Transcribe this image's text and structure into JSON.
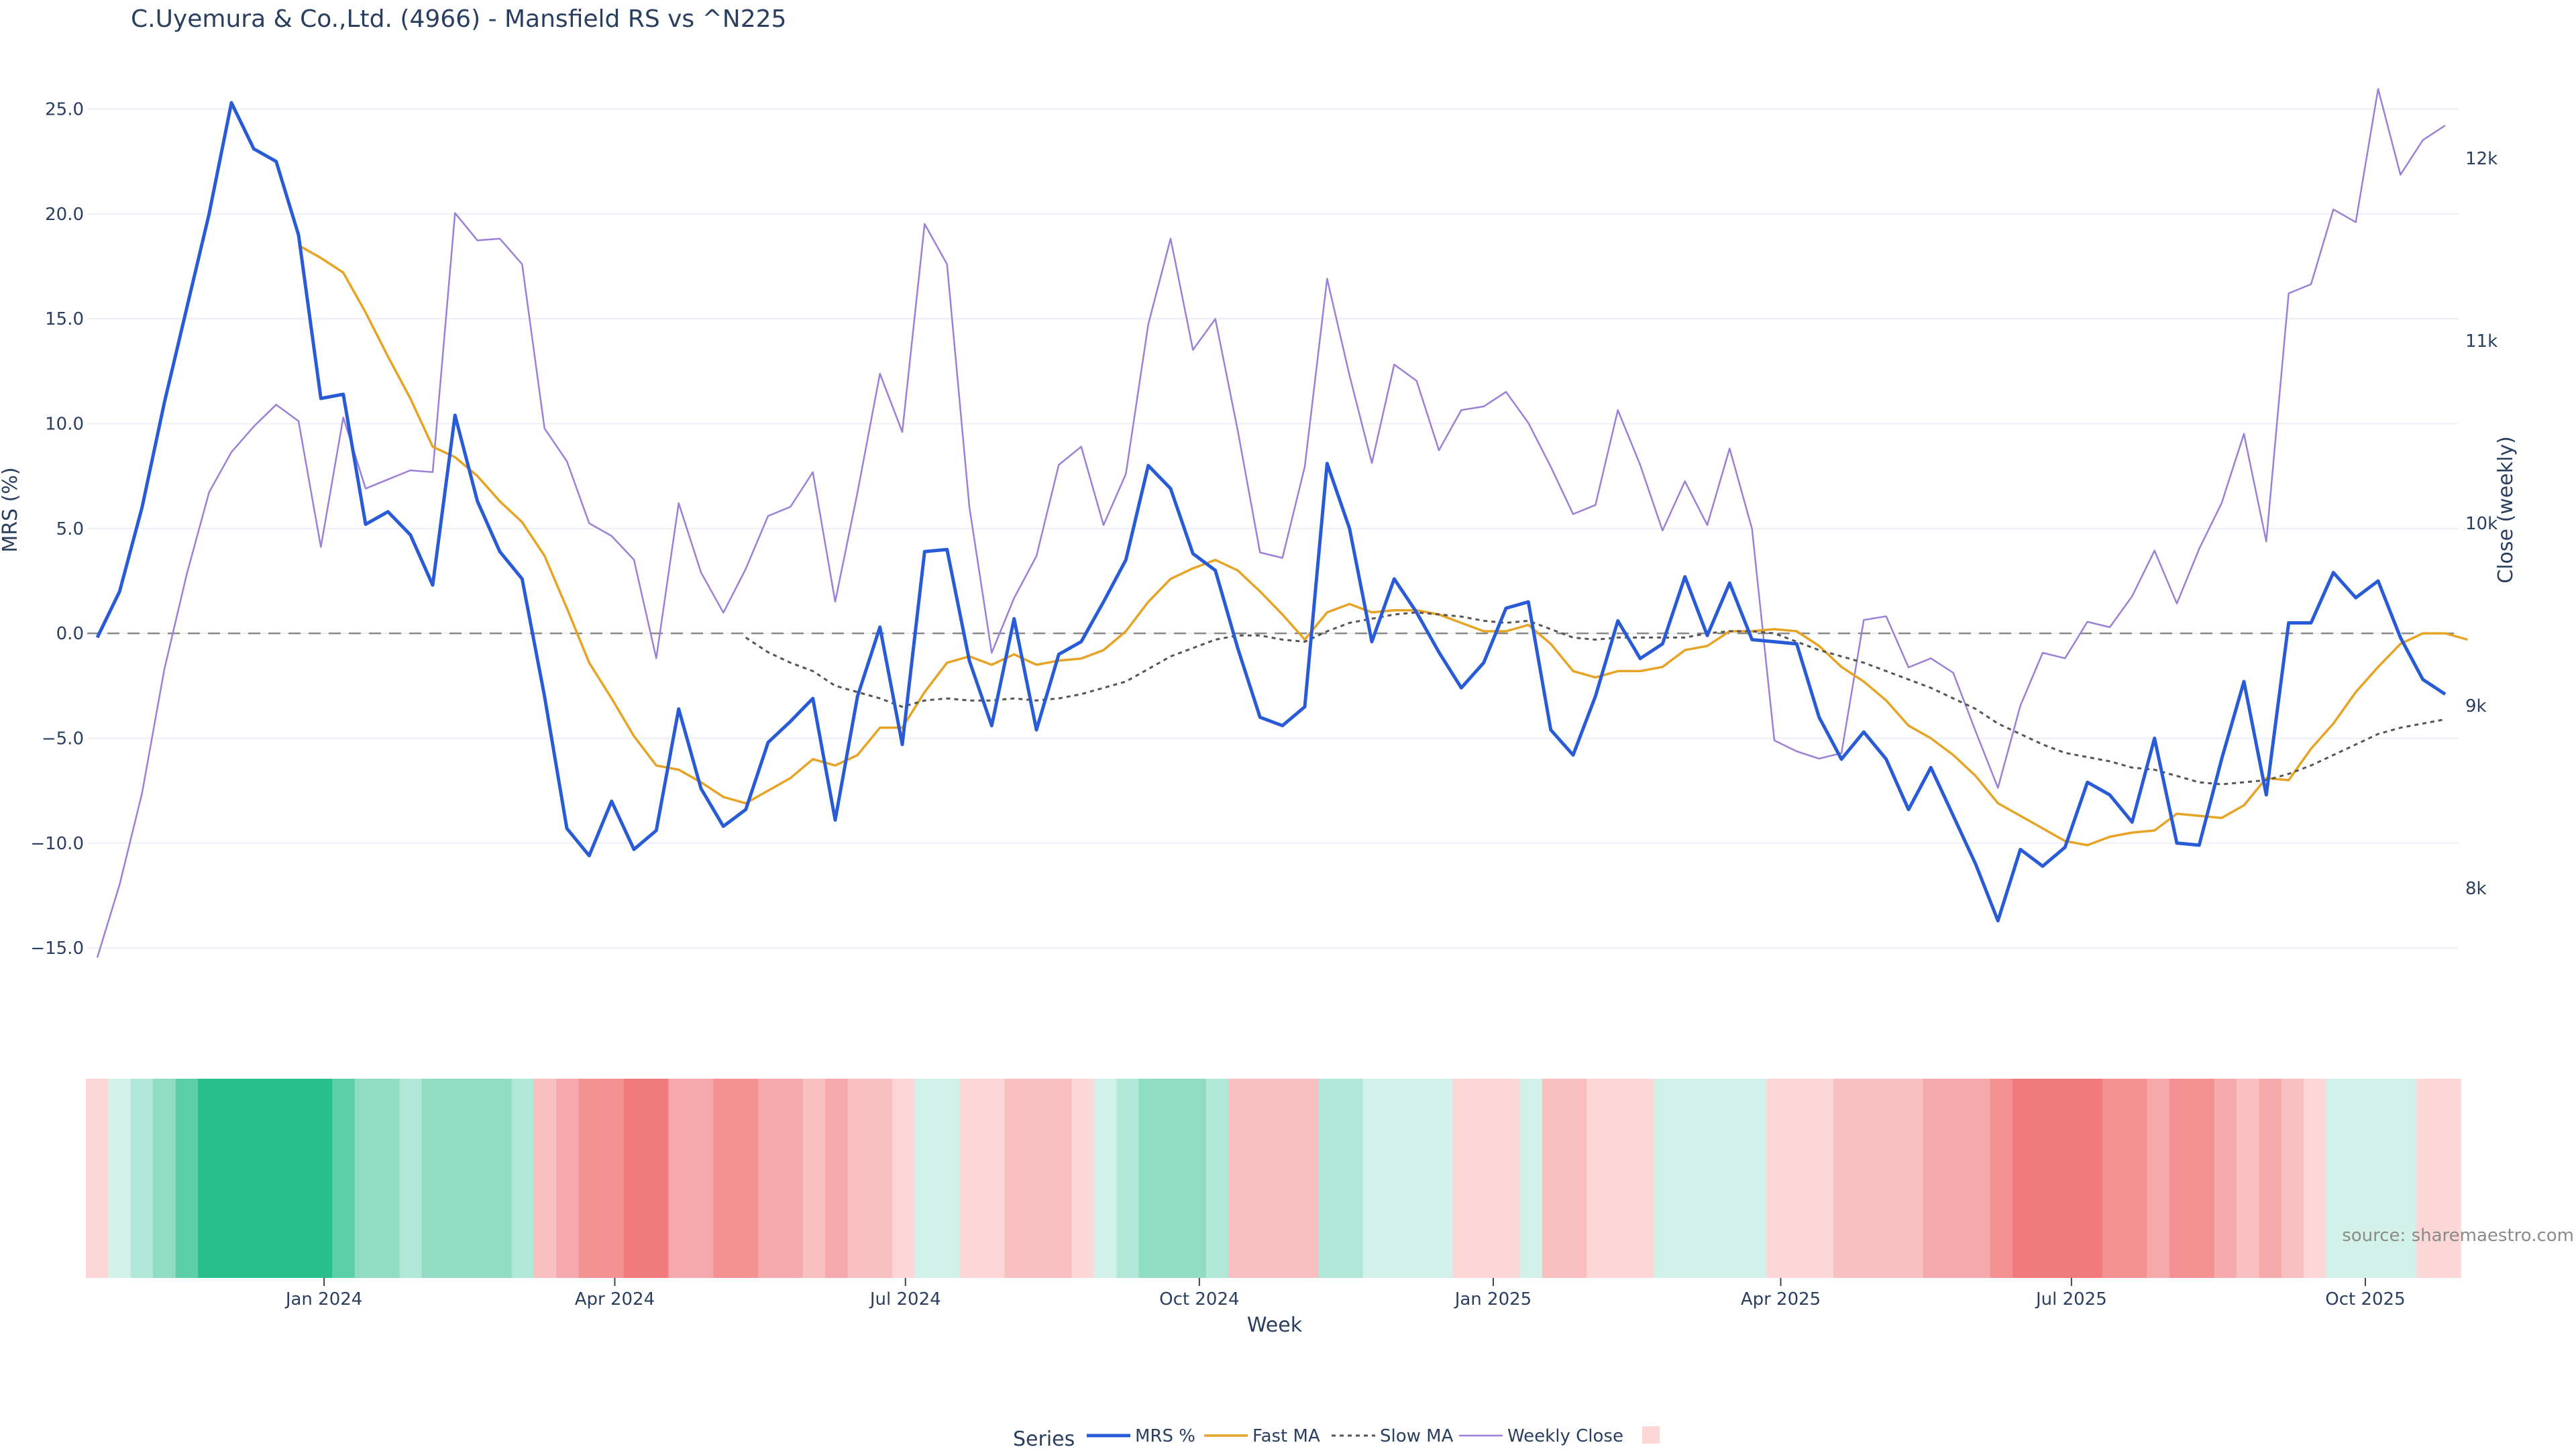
{
  "chart_data": {
    "type": "line",
    "title": "C.Uyemura & Co.,Ltd. (4966) - Mansfield RS vs ^N225",
    "xlabel": "Week",
    "ylabel_left": "MRS (%)",
    "ylabel_right": "Close (weekly)",
    "ylim_left": [
      -16.5,
      27
    ],
    "ylim_right": [
      7500,
      12500
    ],
    "y_ticks_left": [
      25,
      20,
      15,
      10,
      5,
      0,
      -5,
      -10,
      -15
    ],
    "y_tick_labels_left": [
      "25.0",
      "20.0",
      "15.0",
      "10.0",
      "5.0",
      "0.0",
      "−5.0",
      "−10.0",
      "−15.0"
    ],
    "y_ticks_right": [
      8000,
      9000,
      10000,
      11000,
      12000
    ],
    "y_tick_labels_right": [
      "8k",
      "9k",
      "10k",
      "11k",
      "12k"
    ],
    "x_start": "2023-10-22",
    "x_ticks": [
      "2024-01-01",
      "2024-04-01",
      "2024-07-01",
      "2024-10-01",
      "2025-01-01",
      "2025-04-01",
      "2025-07-01",
      "2025-10-01"
    ],
    "x_tick_labels": [
      "Jan 2024",
      "Apr 2024",
      "Jul 2024",
      "Oct 2024",
      "Jan 2025",
      "Apr 2025",
      "Jul 2025",
      "Oct 2025"
    ],
    "zero_line": 0,
    "grid": true,
    "legend_position": "bottom-center",
    "legend_title": "Series",
    "series": [
      {
        "name": "MRS %",
        "color": "#2a5bd7",
        "style": "solid",
        "values": [
          -0.2,
          2.0,
          6.0,
          11.0,
          15.5,
          20.0,
          25.3,
          23.1,
          22.5,
          19.0,
          11.2,
          11.4,
          5.2,
          5.8,
          4.7,
          2.3,
          10.4,
          6.3,
          3.9,
          2.6,
          -3.0,
          -9.3,
          -10.6,
          -8.0,
          -10.3,
          -9.4,
          -3.6,
          -7.4,
          -9.2,
          -8.4,
          -5.2,
          -4.2,
          -3.1,
          -8.9,
          -3.0,
          0.3,
          -5.3,
          3.9,
          4.0,
          -1.3,
          -4.4,
          0.7,
          -4.6,
          -1.0,
          -0.4,
          1.5,
          3.5,
          8.0,
          6.9,
          3.8,
          3.0,
          -0.7,
          -4.0,
          -4.4,
          -3.5,
          8.1,
          5.0,
          -0.4,
          2.6,
          1.0,
          -0.9,
          -2.6,
          -1.4,
          1.2,
          1.5,
          -4.6,
          -5.8,
          -3.0,
          0.6,
          -1.2,
          -0.5,
          2.7,
          -0.1,
          2.4,
          -0.3,
          -0.4,
          -0.5,
          -4.0,
          -6.0,
          -4.7,
          -6.0,
          -8.4,
          -6.4,
          -8.7,
          -11.0,
          -13.7,
          -10.3,
          -11.1,
          -10.2,
          -7.1,
          -7.7,
          -9.0,
          -5.0,
          -10.0,
          -10.1,
          -6.0,
          -2.3,
          -7.7,
          0.5,
          0.5,
          2.9,
          1.7,
          2.5,
          -0.2,
          -2.2,
          -2.9
        ]
      },
      {
        "name": "Fast MA",
        "color": "#e6a324",
        "style": "solid",
        "values": [
          null,
          null,
          null,
          null,
          null,
          null,
          null,
          null,
          null,
          18.5,
          17.9,
          17.2,
          15.3,
          13.2,
          11.2,
          8.9,
          8.4,
          7.5,
          6.3,
          5.3,
          3.7,
          1.2,
          -1.4,
          -3.1,
          -4.9,
          -6.3,
          -6.5,
          -7.1,
          -7.8,
          -8.1,
          -7.5,
          -6.9,
          -6.0,
          -6.3,
          -5.8,
          -4.5,
          -4.5,
          -2.8,
          -1.4,
          -1.1,
          -1.5,
          -1.0,
          -1.5,
          -1.3,
          -1.2,
          -0.8,
          0.1,
          1.5,
          2.6,
          3.1,
          3.5,
          3.0,
          2.0,
          0.9,
          -0.3,
          1.0,
          1.4,
          1.0,
          1.1,
          1.1,
          0.9,
          0.5,
          0.1,
          0.1,
          0.4,
          -0.5,
          -1.8,
          -2.1,
          -1.8,
          -1.8,
          -1.6,
          -0.8,
          -0.6,
          0.1,
          0.1,
          0.2,
          0.1,
          -0.6,
          -1.6,
          -2.3,
          -3.2,
          -4.4,
          -5.0,
          -5.8,
          -6.8,
          -8.1,
          -8.7,
          -9.3,
          -9.9,
          -10.1,
          -9.7,
          -9.5,
          -9.4,
          -8.6,
          -8.7,
          -8.8,
          -8.2,
          -6.9,
          -7.0,
          -5.5,
          -4.3,
          -2.8,
          -1.6,
          -0.5,
          0.0,
          0.0,
          -0.3
        ]
      },
      {
        "name": "Slow MA",
        "color": "#555555",
        "style": "dotted",
        "values": [
          null,
          null,
          null,
          null,
          null,
          null,
          null,
          null,
          null,
          null,
          null,
          null,
          null,
          null,
          null,
          null,
          null,
          null,
          null,
          null,
          null,
          null,
          null,
          null,
          null,
          null,
          null,
          null,
          null,
          -0.2,
          -0.9,
          -1.4,
          -1.8,
          -2.5,
          -2.8,
          -3.1,
          -3.5,
          -3.2,
          -3.1,
          -3.2,
          -3.2,
          -3.1,
          -3.2,
          -3.1,
          -2.9,
          -2.6,
          -2.3,
          -1.7,
          -1.1,
          -0.7,
          -0.3,
          -0.1,
          -0.1,
          -0.3,
          -0.4,
          0.1,
          0.5,
          0.7,
          0.9,
          1.0,
          0.9,
          0.8,
          0.6,
          0.5,
          0.6,
          0.2,
          -0.2,
          -0.3,
          -0.2,
          -0.2,
          -0.2,
          -0.2,
          0.0,
          0.1,
          0.1,
          0.0,
          -0.4,
          -0.8,
          -1.1,
          -1.4,
          -1.8,
          -2.2,
          -2.6,
          -3.1,
          -3.6,
          -4.3,
          -4.8,
          -5.3,
          -5.7,
          -5.9,
          -6.1,
          -6.4,
          -6.5,
          -6.8,
          -7.1,
          -7.2,
          -7.1,
          -7.0,
          -6.7,
          -6.3,
          -5.8,
          -5.3,
          -4.8,
          -4.5,
          -4.3,
          -4.1
        ]
      },
      {
        "name": "Weekly Close",
        "color": "#9c7fd6",
        "style": "solid",
        "axis": "right",
        "values": [
          7620,
          8020,
          8520,
          9200,
          9720,
          10170,
          10390,
          10530,
          10650,
          10560,
          9870,
          10580,
          10190,
          10240,
          10290,
          10280,
          11700,
          11550,
          11560,
          11420,
          10520,
          10340,
          10000,
          9930,
          9800,
          9260,
          10110,
          9730,
          9510,
          9750,
          10040,
          10090,
          10280,
          9570,
          10170,
          10820,
          10500,
          11640,
          11420,
          10090,
          9290,
          9590,
          9820,
          10320,
          10420,
          9990,
          10270,
          11090,
          11560,
          10950,
          11120,
          10510,
          9840,
          9810,
          10310,
          11340,
          10810,
          10330,
          10870,
          10780,
          10400,
          10620,
          10640,
          10720,
          10550,
          10310,
          10050,
          10100,
          10620,
          10320,
          9960,
          10230,
          9990,
          10410,
          9970,
          8810,
          8750,
          8710,
          8740,
          9470,
          9490,
          9210,
          9260,
          9180,
          8860,
          8550,
          9000,
          9290,
          9260,
          9460,
          9430,
          9600,
          9850,
          9560,
          9860,
          10110,
          10490,
          9900,
          11260,
          11310,
          11720,
          11650,
          12380,
          11910,
          12100,
          12180
        ]
      }
    ],
    "strip_intensity": [
      -1,
      1,
      2,
      3,
      4,
      5,
      5,
      5,
      5,
      5,
      5,
      4,
      3,
      3,
      2,
      3,
      3,
      3,
      3,
      2,
      -2,
      -3,
      -4,
      -4,
      -5,
      -5,
      -3,
      -3,
      -4,
      -4,
      -3,
      -3,
      -2,
      -3,
      -2,
      -2,
      -1,
      1,
      1,
      -1,
      -1,
      -2,
      -2,
      -2,
      -1,
      1,
      2,
      3,
      3,
      3,
      2,
      -2,
      -2,
      -2,
      -2,
      2,
      2,
      1,
      1,
      1,
      1,
      -1,
      -1,
      -1,
      1,
      -2,
      -2,
      -1,
      -1,
      -1,
      1,
      1,
      1,
      1,
      1,
      -1,
      -1,
      -1,
      -2,
      -2,
      -2,
      -2,
      -3,
      -3,
      -3,
      -4,
      -5,
      -5,
      -5,
      -5,
      -4,
      -4,
      -3,
      -4,
      -4,
      -3,
      -2,
      -3,
      -2,
      -1,
      1,
      1,
      1,
      1,
      -1,
      -1
    ],
    "strip_colors": {
      "pos": [
        "#d2f2e9",
        "#b0e7d6",
        "#8fdcc3",
        "#5ccfa9",
        "#2ac08d"
      ],
      "neg": [
        "#fbd7d8",
        "#f9bfc1",
        "#f6a9ab",
        "#f49193",
        "#f17a7c"
      ]
    },
    "legend_items": [
      "MRS %",
      "Fast MA",
      "Slow MA",
      "Weekly Close",
      ""
    ],
    "source": "source: sharemaestro.com"
  }
}
